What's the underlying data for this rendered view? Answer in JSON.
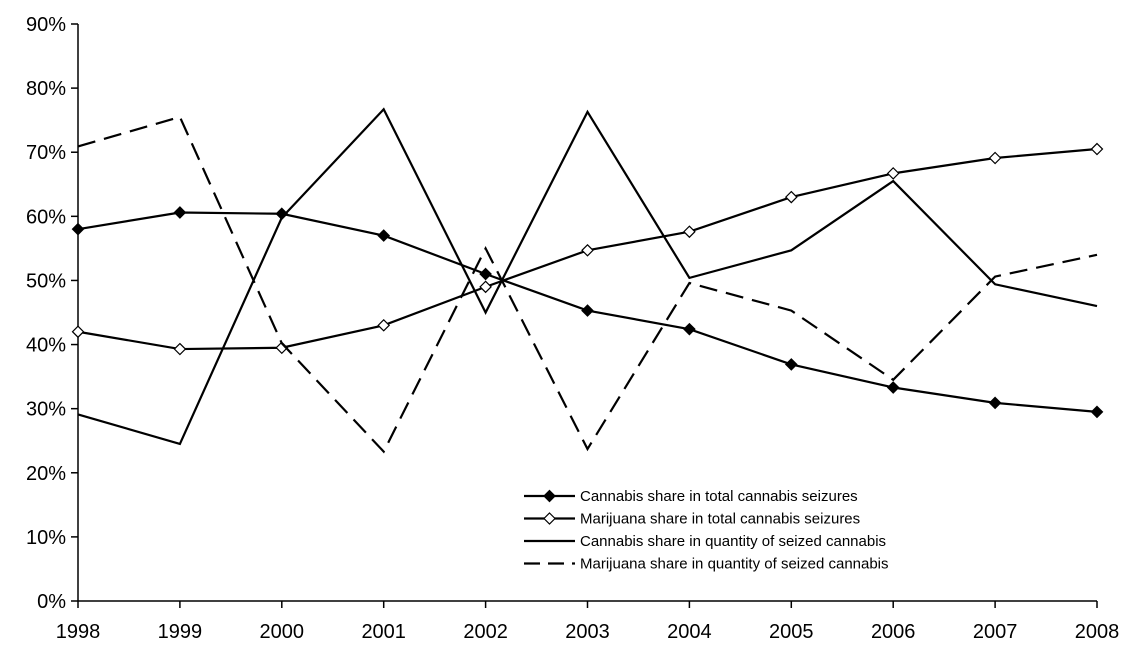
{
  "chart_data": {
    "type": "line",
    "categories": [
      "1998",
      "1999",
      "2000",
      "2001",
      "2002",
      "2003",
      "2004",
      "2005",
      "2006",
      "2007",
      "2008"
    ],
    "y_ticks": [
      "0%",
      "10%",
      "20%",
      "30%",
      "40%",
      "50%",
      "60%",
      "70%",
      "80%",
      "90%"
    ],
    "ylim": [
      0,
      90
    ],
    "grid": false,
    "legend_position": "bottom-right",
    "series": [
      {
        "name": "Cannabis share in total cannabis seizures",
        "values": [
          58.0,
          60.6,
          60.4,
          57.0,
          51.0,
          45.3,
          42.4,
          36.9,
          33.3,
          30.9,
          29.5
        ],
        "color": "#000000",
        "dash": "solid",
        "marker": "diamond-filled"
      },
      {
        "name": "Marijuana share in total cannabis seizures",
        "values": [
          42.0,
          39.3,
          39.5,
          43.0,
          49.0,
          54.7,
          57.6,
          63.0,
          66.7,
          69.1,
          70.5
        ],
        "color": "#000000",
        "dash": "solid",
        "marker": "diamond-open"
      },
      {
        "name": "Cannabis share in quantity of seized cannabis",
        "values": [
          29.1,
          24.5,
          59.8,
          76.7,
          45.0,
          76.3,
          50.4,
          54.7,
          65.5,
          49.4,
          46.0
        ],
        "color": "#000000",
        "dash": "solid",
        "marker": "none"
      },
      {
        "name": "Marijuana share in quantity of seized cannabis",
        "values": [
          70.9,
          75.5,
          40.2,
          23.3,
          55.0,
          23.7,
          49.6,
          45.3,
          34.5,
          50.6,
          54.0
        ],
        "color": "#000000",
        "dash": "dashed",
        "marker": "none"
      }
    ]
  }
}
